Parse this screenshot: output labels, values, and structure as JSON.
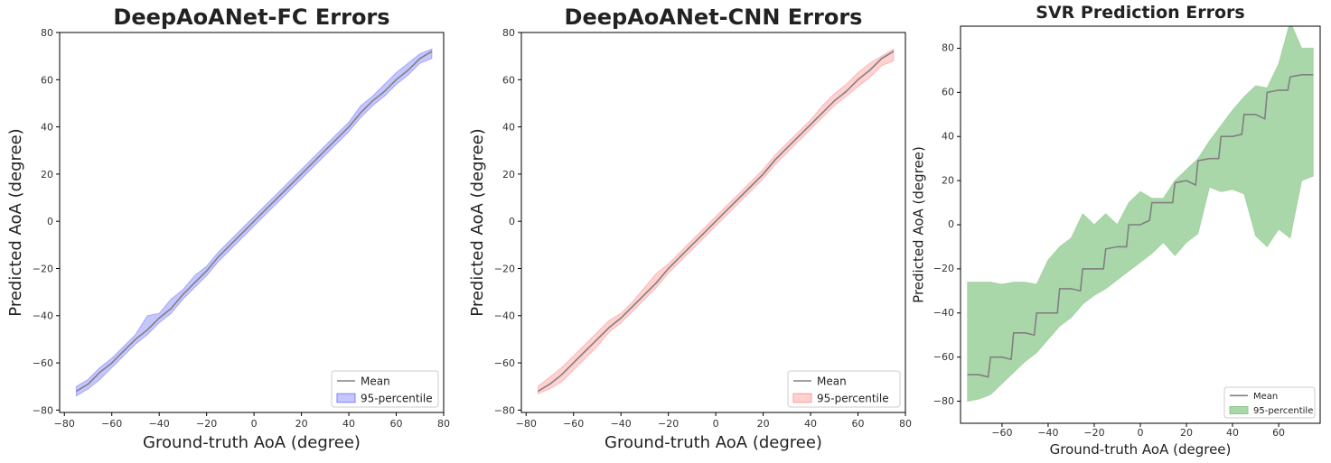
{
  "chart_data": [
    {
      "type": "area",
      "title": "DeepAoANet-FC Errors",
      "xlabel": "Ground-truth AoA (degree)",
      "ylabel": "Predicted AoA (degree)",
      "xlim": [
        -82,
        80
      ],
      "ylim": [
        -81,
        80
      ],
      "xticks": [
        -80,
        -60,
        -40,
        -20,
        0,
        20,
        40,
        60,
        80
      ],
      "yticks": [
        -80,
        -60,
        -40,
        -20,
        0,
        20,
        40,
        60,
        80
      ],
      "grid": false,
      "legend_position": "lower-right",
      "colors": {
        "mean": "#808080",
        "band": "#8080ff"
      },
      "series": [
        {
          "name": "Mean",
          "x": [
            -75,
            -70,
            -65,
            -60,
            -55,
            -50,
            -45,
            -40,
            -35,
            -30,
            -25,
            -20,
            -15,
            -10,
            -5,
            0,
            5,
            10,
            15,
            20,
            25,
            30,
            35,
            40,
            45,
            50,
            55,
            60,
            65,
            70,
            75
          ],
          "y": [
            -72,
            -69,
            -64,
            -60,
            -55,
            -50,
            -46,
            -41,
            -37,
            -31,
            -26,
            -21,
            -15,
            -10,
            -5,
            0,
            5,
            10,
            15,
            20,
            25,
            30,
            35,
            40,
            46,
            51,
            55,
            60,
            64,
            69,
            72
          ]
        },
        {
          "name": "95-percentile",
          "x": [
            -75,
            -70,
            -65,
            -60,
            -55,
            -50,
            -45,
            -40,
            -35,
            -30,
            -25,
            -20,
            -15,
            -10,
            -5,
            0,
            5,
            10,
            15,
            20,
            25,
            30,
            35,
            40,
            45,
            50,
            55,
            60,
            65,
            70,
            75
          ],
          "lower": [
            -74,
            -71,
            -67,
            -62,
            -57,
            -52,
            -48,
            -43,
            -39,
            -33,
            -28,
            -23,
            -17,
            -12,
            -7,
            -2,
            3,
            8,
            13,
            18,
            23,
            28,
            33,
            38,
            44,
            49,
            53,
            58,
            62,
            67,
            69
          ],
          "upper": [
            -70,
            -67,
            -62,
            -58,
            -53,
            -48,
            -40,
            -39,
            -33,
            -29,
            -23,
            -19,
            -13,
            -8,
            -3,
            2,
            7,
            12,
            17,
            22,
            27,
            32,
            37,
            42,
            49,
            53,
            58,
            63,
            67,
            71,
            73
          ]
        }
      ]
    },
    {
      "type": "area",
      "title": "DeepAoANet-CNN Errors",
      "xlabel": "Ground-truth AoA (degree)",
      "ylabel": "Predicted AoA (degree)",
      "xlim": [
        -82,
        80
      ],
      "ylim": [
        -81,
        80
      ],
      "xticks": [
        -80,
        -60,
        -40,
        -20,
        0,
        20,
        40,
        60,
        80
      ],
      "yticks": [
        -80,
        -60,
        -40,
        -20,
        0,
        20,
        40,
        60,
        80
      ],
      "grid": false,
      "legend_position": "lower-right",
      "colors": {
        "mean": "#808080",
        "band": "#ff9a9a"
      },
      "series": [
        {
          "name": "Mean",
          "x": [
            -75,
            -70,
            -65,
            -60,
            -55,
            -50,
            -45,
            -40,
            -35,
            -30,
            -25,
            -20,
            -15,
            -10,
            -5,
            0,
            5,
            10,
            15,
            20,
            25,
            30,
            35,
            40,
            45,
            50,
            55,
            60,
            65,
            70,
            75
          ],
          "y": [
            -72,
            -69,
            -65,
            -60,
            -55,
            -50,
            -45,
            -41,
            -36,
            -31,
            -26,
            -20,
            -15,
            -10,
            -5,
            0,
            5,
            10,
            15,
            20,
            26,
            31,
            36,
            41,
            46,
            51,
            55,
            60,
            64,
            69,
            72
          ]
        },
        {
          "name": "95-percentile",
          "x": [
            -75,
            -70,
            -65,
            -60,
            -55,
            -50,
            -45,
            -40,
            -35,
            -30,
            -25,
            -20,
            -15,
            -10,
            -5,
            0,
            5,
            10,
            15,
            20,
            25,
            30,
            35,
            40,
            45,
            50,
            55,
            60,
            65,
            70,
            75
          ],
          "lower": [
            -73,
            -71,
            -68,
            -63,
            -58,
            -53,
            -47,
            -43,
            -38,
            -33,
            -28,
            -22,
            -17,
            -12,
            -7,
            -2,
            3,
            8,
            13,
            18,
            24,
            29,
            34,
            39,
            44,
            49,
            53,
            57,
            61,
            66,
            68
          ],
          "upper": [
            -70,
            -66,
            -62,
            -57,
            -52,
            -47,
            -42,
            -39,
            -34,
            -28,
            -22,
            -18,
            -13,
            -8,
            -3,
            2,
            7,
            12,
            17,
            22,
            28,
            33,
            38,
            43,
            49,
            54,
            58,
            63,
            67,
            70,
            73
          ]
        }
      ]
    },
    {
      "type": "area",
      "title": "SVR Prediction Errors",
      "xlabel": "Ground-truth AoA (degree)",
      "ylabel": "Predicted AoA (degree)",
      "xlim": [
        -78,
        78
      ],
      "ylim": [
        -90,
        90
      ],
      "xticks": [
        -80,
        -60,
        -40,
        -20,
        0,
        20,
        40,
        60
      ],
      "yticks": [
        -80,
        -60,
        -40,
        -20,
        0,
        20,
        40,
        60,
        80
      ],
      "grid": false,
      "legend_position": "lower-right",
      "colors": {
        "mean": "#808080",
        "band": "#8ec98e"
      },
      "series": [
        {
          "name": "Mean",
          "x": [
            -75,
            -70,
            -66,
            -65,
            -60,
            -56,
            -55,
            -50,
            -46,
            -45,
            -40,
            -36,
            -35,
            -30,
            -26,
            -25,
            -20,
            -16,
            -15,
            -10,
            -6,
            -5,
            0,
            4,
            5,
            10,
            14,
            15,
            20,
            24,
            25,
            30,
            34,
            35,
            40,
            44,
            45,
            50,
            54,
            55,
            60,
            64,
            65,
            70,
            75
          ],
          "y": [
            -68,
            -68,
            -69,
            -60,
            -60,
            -61,
            -49,
            -49,
            -50,
            -40,
            -40,
            -40,
            -29,
            -29,
            -30,
            -20,
            -20,
            -20,
            -11,
            -10,
            -10,
            0,
            0,
            2,
            10,
            10,
            10,
            19,
            20,
            18,
            29,
            30,
            30,
            40,
            40,
            41,
            50,
            50,
            48,
            60,
            61,
            61,
            67,
            68,
            68
          ]
        },
        {
          "name": "95-percentile",
          "x": [
            -75,
            -70,
            -65,
            -60,
            -55,
            -50,
            -45,
            -40,
            -35,
            -30,
            -25,
            -20,
            -15,
            -10,
            -5,
            0,
            5,
            10,
            15,
            20,
            25,
            30,
            35,
            40,
            45,
            50,
            55,
            60,
            65,
            70,
            75
          ],
          "lower": [
            -80,
            -79,
            -77,
            -72,
            -67,
            -62,
            -58,
            -52,
            -46,
            -42,
            -36,
            -32,
            -29,
            -25,
            -21,
            -17,
            -13,
            -8,
            -14,
            -8,
            -4,
            17,
            15,
            16,
            14,
            -5,
            -10,
            -2,
            -6,
            20,
            22
          ],
          "upper": [
            -26,
            -26,
            -26,
            -27,
            -26,
            -26,
            -27,
            -16,
            -10,
            -6,
            5,
            0,
            5,
            0,
            10,
            15,
            12,
            12,
            20,
            25,
            30,
            38,
            45,
            52,
            58,
            63,
            62,
            73,
            92,
            80,
            80
          ]
        }
      ]
    }
  ]
}
